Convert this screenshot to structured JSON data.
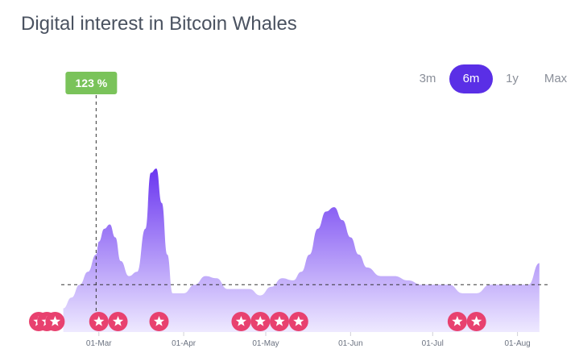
{
  "title": "Digital interest in Bitcoin Whales",
  "ranges": [
    {
      "label": "3m",
      "active": false
    },
    {
      "label": "6m",
      "active": true
    },
    {
      "label": "1y",
      "active": false
    },
    {
      "label": "Max",
      "active": false
    }
  ],
  "colors": {
    "accent": "#5a2fe6",
    "area_top": "#6a35f0",
    "area_bottom": "#eee9ff",
    "badge": "#7ac35a",
    "marker": "#e8416f"
  },
  "chart_data": {
    "type": "area",
    "ylim": [
      0,
      100
    ],
    "xlim": [
      "2024-02-08",
      "2024-08-12"
    ],
    "ticks": [
      {
        "label": "01-Mar",
        "date": "2024-03-01"
      },
      {
        "label": "01-Apr",
        "date": "2024-04-01"
      },
      {
        "label": "01-May",
        "date": "2024-05-01"
      },
      {
        "label": "01-Jun",
        "date": "2024-06-01"
      },
      {
        "label": "01-Jul",
        "date": "2024-07-01"
      },
      {
        "label": "01-Aug",
        "date": "2024-08-01"
      }
    ],
    "x": [
      "2024-02-17",
      "2024-02-20",
      "2024-02-23",
      "2024-02-26",
      "2024-02-29",
      "2024-03-01",
      "2024-03-03",
      "2024-03-05",
      "2024-03-07",
      "2024-03-09",
      "2024-03-12",
      "2024-03-15",
      "2024-03-18",
      "2024-03-20",
      "2024-03-22",
      "2024-03-24",
      "2024-03-26",
      "2024-03-28",
      "2024-04-01",
      "2024-04-05",
      "2024-04-09",
      "2024-04-13",
      "2024-04-17",
      "2024-04-21",
      "2024-04-25",
      "2024-04-29",
      "2024-05-03",
      "2024-05-07",
      "2024-05-11",
      "2024-05-14",
      "2024-05-17",
      "2024-05-20",
      "2024-05-23",
      "2024-05-26",
      "2024-05-29",
      "2024-06-01",
      "2024-06-04",
      "2024-06-07",
      "2024-06-12",
      "2024-06-17",
      "2024-06-22",
      "2024-06-27",
      "2024-07-02",
      "2024-07-07",
      "2024-07-12",
      "2024-07-17",
      "2024-07-22",
      "2024-07-27",
      "2024-08-01",
      "2024-08-05",
      "2024-08-09"
    ],
    "values": [
      11,
      16,
      22,
      28,
      36,
      42,
      48,
      50,
      44,
      33,
      26,
      28,
      48,
      74,
      76,
      60,
      36,
      18,
      18,
      22,
      26,
      25,
      20,
      20,
      20,
      17,
      21,
      25,
      24,
      28,
      36,
      48,
      56,
      58,
      52,
      44,
      36,
      30,
      26,
      26,
      24,
      22,
      22,
      22,
      18,
      18,
      22,
      22,
      22,
      22,
      32
    ],
    "reference_line": 22,
    "selected_point": {
      "date": "2024-02-29",
      "label": "123 %"
    },
    "markers": [
      "2024-02-08",
      "2024-02-11",
      "2024-02-14",
      "2024-03-01",
      "2024-03-08",
      "2024-03-23",
      "2024-04-22",
      "2024-04-29",
      "2024-05-06",
      "2024-05-13",
      "2024-07-10",
      "2024-07-17"
    ]
  }
}
